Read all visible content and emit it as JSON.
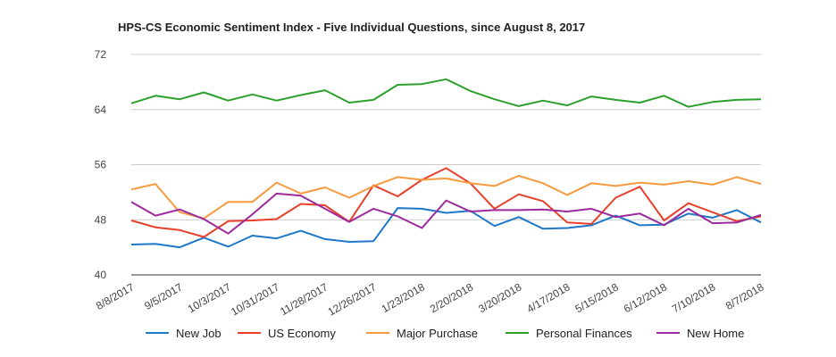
{
  "chart_data": {
    "type": "line",
    "title": "HPS-CS Economic Sentiment Index - Five Individual Questions, since August 8, 2017",
    "xlabel": "",
    "ylabel": "",
    "ylim": [
      40,
      72
    ],
    "yticks": [
      40,
      48,
      56,
      64,
      72
    ],
    "grid": true,
    "legend": "bottom",
    "x": [
      "8/8/2017",
      "8/22/2017",
      "9/5/2017",
      "9/19/2017",
      "10/3/2017",
      "10/17/2017",
      "10/31/2017",
      "11/14/2017",
      "11/28/2017",
      "12/12/2017",
      "12/26/2017",
      "1/9/2018",
      "1/23/2018",
      "2/6/2018",
      "2/20/2018",
      "3/6/2018",
      "3/20/2018",
      "4/3/2018",
      "4/17/2018",
      "5/1/2018",
      "5/15/2018",
      "5/29/2018",
      "6/12/2018",
      "6/26/2018",
      "7/10/2018",
      "7/24/2018",
      "8/7/2018"
    ],
    "x_tick_labels": [
      "8/8/2017",
      "9/5/2017",
      "10/3/2017",
      "10/31/2017",
      "11/28/2017",
      "12/26/2017",
      "1/23/2018",
      "2/20/2018",
      "3/20/2018",
      "4/17/2018",
      "5/15/2018",
      "6/12/2018",
      "7/10/2018",
      "8/7/2018"
    ],
    "series": [
      {
        "name": "New Job",
        "color": "#1f77c8",
        "values": [
          44.4,
          44.5,
          44.0,
          45.4,
          44.1,
          45.7,
          45.3,
          46.4,
          45.2,
          44.8,
          44.9,
          49.7,
          49.6,
          49.0,
          49.3,
          47.1,
          48.4,
          46.7,
          46.8,
          47.2,
          48.6,
          47.2,
          47.3,
          48.9,
          48.3,
          49.4,
          47.6
        ]
      },
      {
        "name": "US Economy",
        "color": "#e8402a",
        "values": [
          47.9,
          46.9,
          46.5,
          45.5,
          47.8,
          47.9,
          48.1,
          50.3,
          50.1,
          47.7,
          53.0,
          51.4,
          53.8,
          55.5,
          53.3,
          49.6,
          51.7,
          50.7,
          47.6,
          47.4,
          51.2,
          52.8,
          47.9,
          50.4,
          49.1,
          47.8,
          48.5
        ]
      },
      {
        "name": "Major Purchase",
        "color": "#f79a3e",
        "values": [
          52.4,
          53.2,
          49.1,
          48.2,
          50.6,
          50.6,
          53.4,
          51.8,
          52.7,
          51.2,
          52.9,
          54.2,
          53.8,
          54.0,
          53.3,
          52.9,
          54.4,
          53.3,
          51.6,
          53.3,
          52.9,
          53.4,
          53.1,
          53.6,
          53.1,
          54.2,
          53.2
        ]
      },
      {
        "name": "Personal Finances",
        "color": "#2ca02c",
        "values": [
          64.9,
          66.0,
          65.5,
          66.5,
          65.3,
          66.2,
          65.3,
          66.1,
          66.8,
          65.0,
          65.4,
          67.6,
          67.7,
          68.4,
          66.7,
          65.5,
          64.5,
          65.3,
          64.6,
          65.9,
          65.4,
          65.0,
          66.0,
          64.4,
          65.1,
          65.4,
          65.5
        ]
      },
      {
        "name": "New Home",
        "color": "#9c2a9c",
        "values": [
          50.6,
          48.6,
          49.5,
          48.1,
          46.0,
          48.8,
          51.8,
          51.5,
          49.6,
          47.7,
          49.6,
          48.5,
          46.8,
          50.8,
          49.2,
          49.4,
          49.4,
          49.5,
          49.2,
          49.6,
          48.4,
          48.9,
          47.2,
          49.6,
          47.5,
          47.6,
          48.7
        ]
      }
    ]
  }
}
